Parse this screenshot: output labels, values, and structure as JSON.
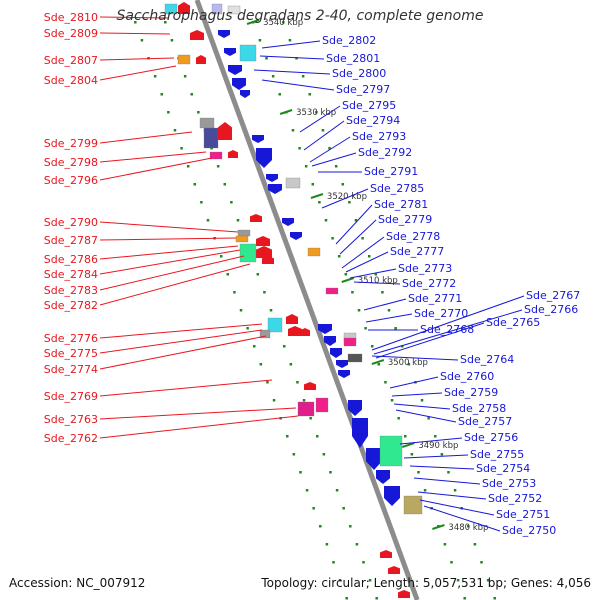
{
  "title": "Saccharophagus degradans 2-40, complete genome",
  "footer": {
    "accession": "Accession: NC_007912",
    "summary": "Topology: circular; Length: 5,057,531 bp; Genes: 4,056"
  },
  "colors": {
    "forward": "#e8171f",
    "reverse": "#1717d8",
    "backbone": "#8c8c8c",
    "ticks": "#1c8a1c",
    "label_text": "#333333"
  },
  "scale_ticks": [
    "3540 kbp",
    "3530 kbp",
    "3520 kbp",
    "3510 kbp",
    "3500 kbp",
    "3490 kbp",
    "3480 kbp"
  ],
  "left_genes": [
    {
      "label": "Sde_2810"
    },
    {
      "label": "Sde_2809"
    },
    {
      "label": "Sde_2807"
    },
    {
      "label": "Sde_2804"
    },
    {
      "label": "Sde_2799"
    },
    {
      "label": "Sde_2798"
    },
    {
      "label": "Sde_2796"
    },
    {
      "label": "Sde_2790"
    },
    {
      "label": "Sde_2787"
    },
    {
      "label": "Sde_2786"
    },
    {
      "label": "Sde_2784"
    },
    {
      "label": "Sde_2783"
    },
    {
      "label": "Sde_2782"
    },
    {
      "label": "Sde_2776"
    },
    {
      "label": "Sde_2775"
    },
    {
      "label": "Sde_2774"
    },
    {
      "label": "Sde_2769"
    },
    {
      "label": "Sde_2763"
    },
    {
      "label": "Sde_2762"
    }
  ],
  "right_genes": [
    {
      "label": "Sde_2802"
    },
    {
      "label": "Sde_2801"
    },
    {
      "label": "Sde_2800"
    },
    {
      "label": "Sde_2797"
    },
    {
      "label": "Sde_2795"
    },
    {
      "label": "Sde_2794"
    },
    {
      "label": "Sde_2793"
    },
    {
      "label": "Sde_2792"
    },
    {
      "label": "Sde_2791"
    },
    {
      "label": "Sde_2785"
    },
    {
      "label": "Sde_2781"
    },
    {
      "label": "Sde_2779"
    },
    {
      "label": "Sde_2778"
    },
    {
      "label": "Sde_2777"
    },
    {
      "label": "Sde_2773"
    },
    {
      "label": "Sde_2772"
    },
    {
      "label": "Sde_2771"
    },
    {
      "label": "Sde_2770"
    },
    {
      "label": "Sde_2768"
    },
    {
      "label": "Sde_2767"
    },
    {
      "label": "Sde_2766"
    },
    {
      "label": "Sde_2765"
    },
    {
      "label": "Sde_2764"
    },
    {
      "label": "Sde_2760"
    },
    {
      "label": "Sde_2759"
    },
    {
      "label": "Sde_2758"
    },
    {
      "label": "Sde_2757"
    },
    {
      "label": "Sde_2756"
    },
    {
      "label": "Sde_2755"
    },
    {
      "label": "Sde_2754"
    },
    {
      "label": "Sde_2753"
    },
    {
      "label": "Sde_2752"
    },
    {
      "label": "Sde_2751"
    },
    {
      "label": "Sde_2750"
    }
  ]
}
